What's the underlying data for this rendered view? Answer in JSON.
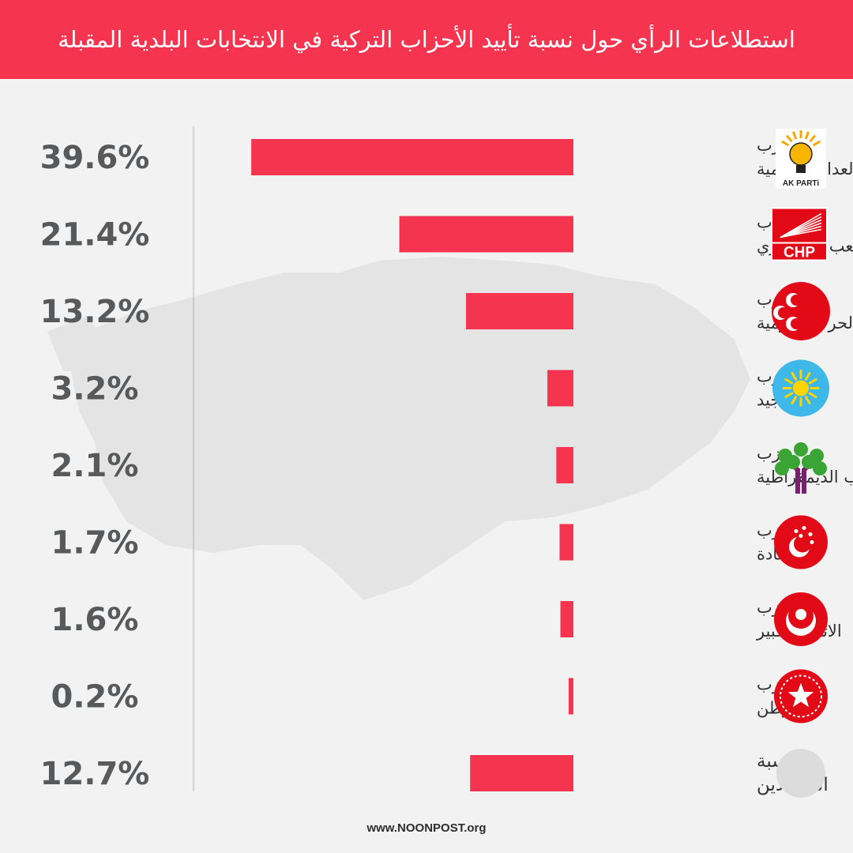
{
  "header": {
    "title": "استطلاعات الرأي حول نسبة تأييد الأحزاب التركية في الانتخابات البلدية المقبلة"
  },
  "footer": {
    "site": "www.NOONPOST.org"
  },
  "colors": {
    "accent": "#f5344f",
    "bar": "#f5344f",
    "background": "#f2f2f2",
    "text": "#58595b",
    "map": "#e6e6e6"
  },
  "chart_data": {
    "type": "bar",
    "orientation": "horizontal",
    "title": "استطلاعات الرأي حول نسبة تأييد الأحزاب التركية في الانتخابات البلدية المقبلة",
    "categories": [
      [
        "حزب",
        "العدالة والتنمية"
      ],
      [
        "حزب",
        "الشعب الجمهوري"
      ],
      [
        "حزب",
        "الحركة القومية"
      ],
      [
        "حزب",
        "الجيد"
      ],
      [
        "حزب",
        "الشعوب الديمقراطية"
      ],
      [
        "حزب",
        "السعادة"
      ],
      [
        "حزب",
        "الاتحاد الكبير"
      ],
      [
        "حزب",
        "الوطن"
      ],
      [
        "نسبة",
        "المترددين"
      ]
    ],
    "values": [
      39.6,
      21.4,
      13.2,
      3.2,
      2.1,
      1.7,
      1.6,
      0.2,
      12.7
    ],
    "value_labels": [
      "39.6%",
      "21.4%",
      "13.2%",
      "3.2%",
      "2.1%",
      "1.7%",
      "1.6%",
      "0.2%",
      "12.7%"
    ],
    "logos": [
      {
        "icon": "ak-parti-logo",
        "text": "AK PARTi"
      },
      {
        "icon": "chp-logo",
        "text": "CHP"
      },
      {
        "icon": "mhp-logo"
      },
      {
        "icon": "iyi-parti-logo"
      },
      {
        "icon": "hdp-logo"
      },
      {
        "icon": "saadet-logo"
      },
      {
        "icon": "bbp-logo"
      },
      {
        "icon": "vatan-logo"
      },
      {
        "icon": "undecided-placeholder"
      }
    ],
    "xlim": [
      0,
      40
    ],
    "grid": false,
    "legend": "none"
  }
}
